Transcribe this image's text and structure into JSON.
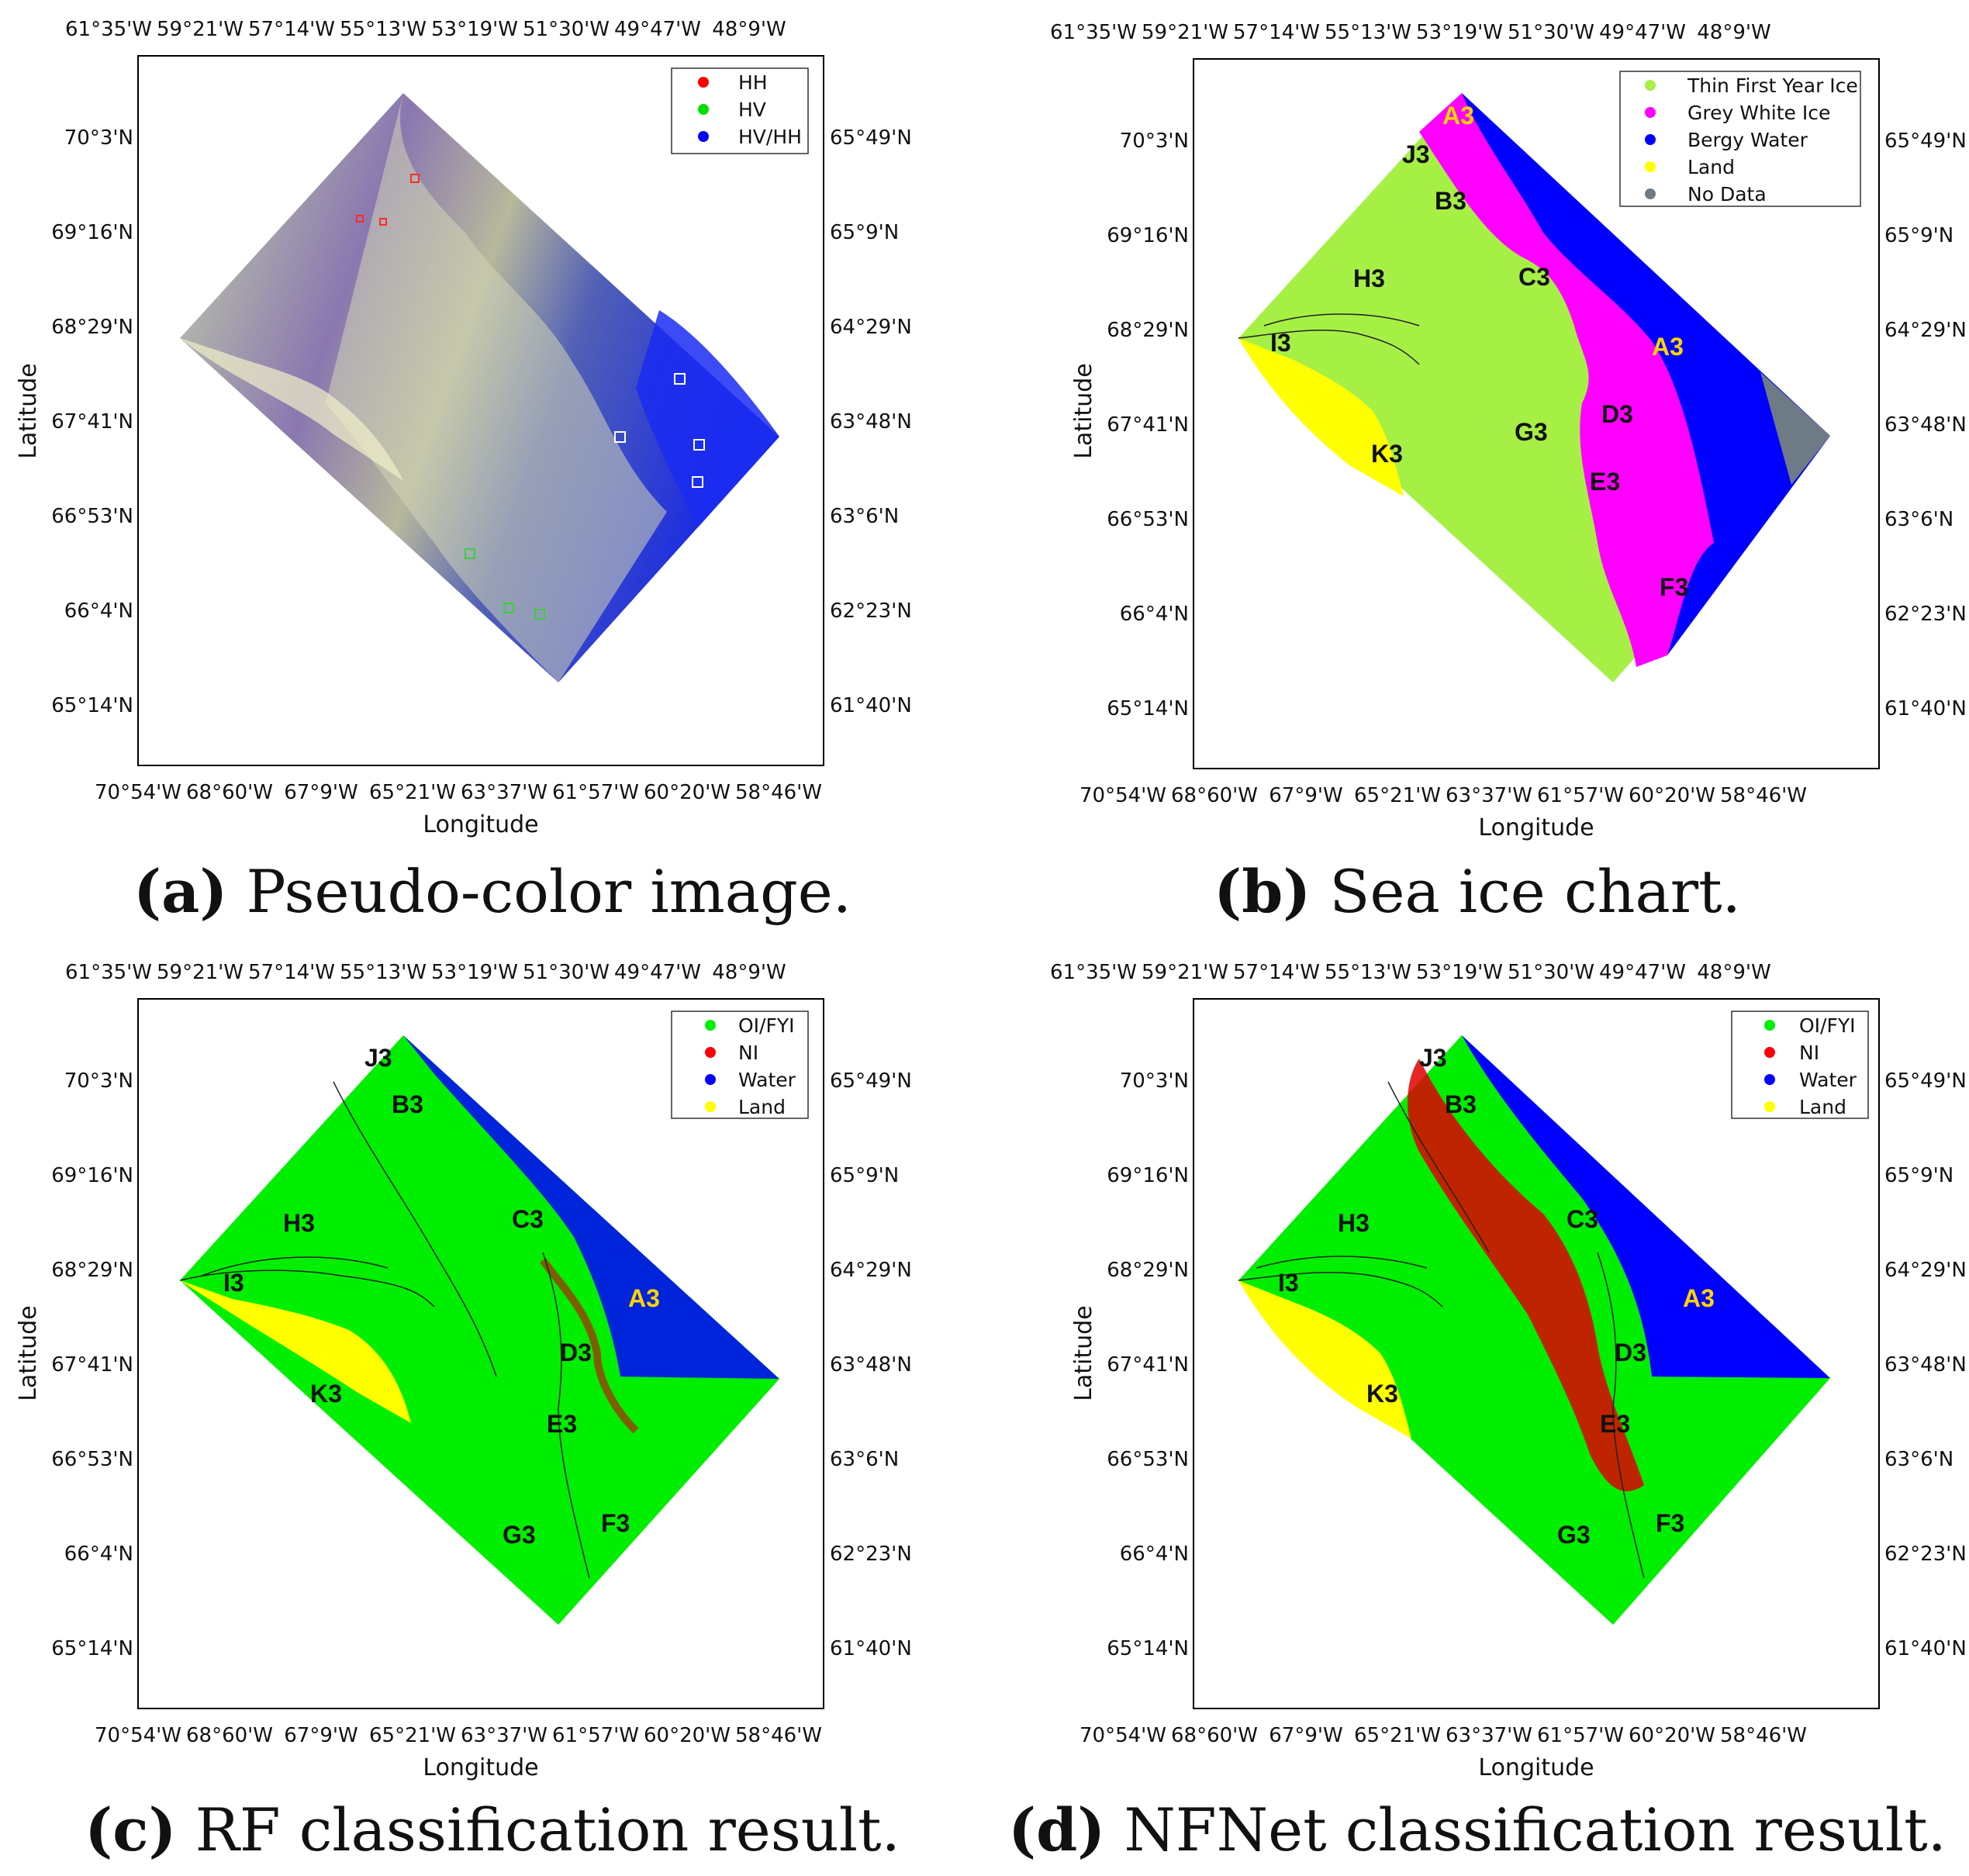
{
  "axes": {
    "top_ticks": [
      "61°35'W",
      "59°21'W",
      "57°14'W",
      "55°13'W",
      "53°19'W",
      "51°30'W",
      "49°47'W",
      "48°9'W"
    ],
    "bottom_ticks": [
      "70°54'W",
      "68°60'W",
      "67°9'W",
      "65°21'W",
      "63°37'W",
      "61°57'W",
      "60°20'W",
      "58°46'W"
    ],
    "left_ticks": [
      "70°3'N",
      "69°16'N",
      "68°29'N",
      "67°41'N",
      "66°53'N",
      "66°4'N",
      "65°14'N"
    ],
    "right_ticks": [
      "65°49'N",
      "65°9'N",
      "64°29'N",
      "63°48'N",
      "63°6'N",
      "62°23'N",
      "61°40'N"
    ],
    "xlabel": "Longitude",
    "ylabel": "Latitude"
  },
  "panels": [
    {
      "id": "a",
      "caption_letter": "(a)",
      "caption_text": " Pseudo-color image.",
      "legend": [
        {
          "label": "HH",
          "color": "#ff0000"
        },
        {
          "label": "HV",
          "color": "#00e000"
        },
        {
          "label": "HV/HH",
          "color": "#0000ff"
        }
      ],
      "regions": []
    },
    {
      "id": "b",
      "caption_letter": "(b)",
      "caption_text": " Sea ice chart.",
      "legend": [
        {
          "label": "Thin First Year Ice",
          "color": "#a6f046"
        },
        {
          "label": "Grey White Ice",
          "color": "#ff00ff"
        },
        {
          "label": "Bergy Water",
          "color": "#0000ff"
        },
        {
          "label": "Land",
          "color": "#ffff00"
        },
        {
          "label": "No Data",
          "color": "#6e7a85"
        }
      ],
      "regions": [
        "A3",
        "J3",
        "B3",
        "H3",
        "C3",
        "I3",
        "A3",
        "D3",
        "G3",
        "K3",
        "E3",
        "F3"
      ]
    },
    {
      "id": "c",
      "caption_letter": "(c)",
      "caption_text": " RF classification result.",
      "legend": [
        {
          "label": "OI/FYI",
          "color": "#00ee00"
        },
        {
          "label": "NI",
          "color": "#ff0000"
        },
        {
          "label": "Water",
          "color": "#0000ff"
        },
        {
          "label": "Land",
          "color": "#ffff00"
        }
      ],
      "regions": [
        "J3",
        "B3",
        "H3",
        "C3",
        "I3",
        "A3",
        "D3",
        "K3",
        "E3",
        "G3",
        "F3"
      ]
    },
    {
      "id": "d",
      "caption_letter": "(d)",
      "caption_text": " NFNet classification result.",
      "legend": [
        {
          "label": "OI/FYI",
          "color": "#00ee00"
        },
        {
          "label": "NI",
          "color": "#ff0000"
        },
        {
          "label": "Water",
          "color": "#0000ff"
        },
        {
          "label": "Land",
          "color": "#ffff00"
        }
      ],
      "regions": [
        "J3",
        "B3",
        "H3",
        "C3",
        "I3",
        "A3",
        "D3",
        "K3",
        "E3",
        "G3",
        "F3"
      ]
    }
  ]
}
